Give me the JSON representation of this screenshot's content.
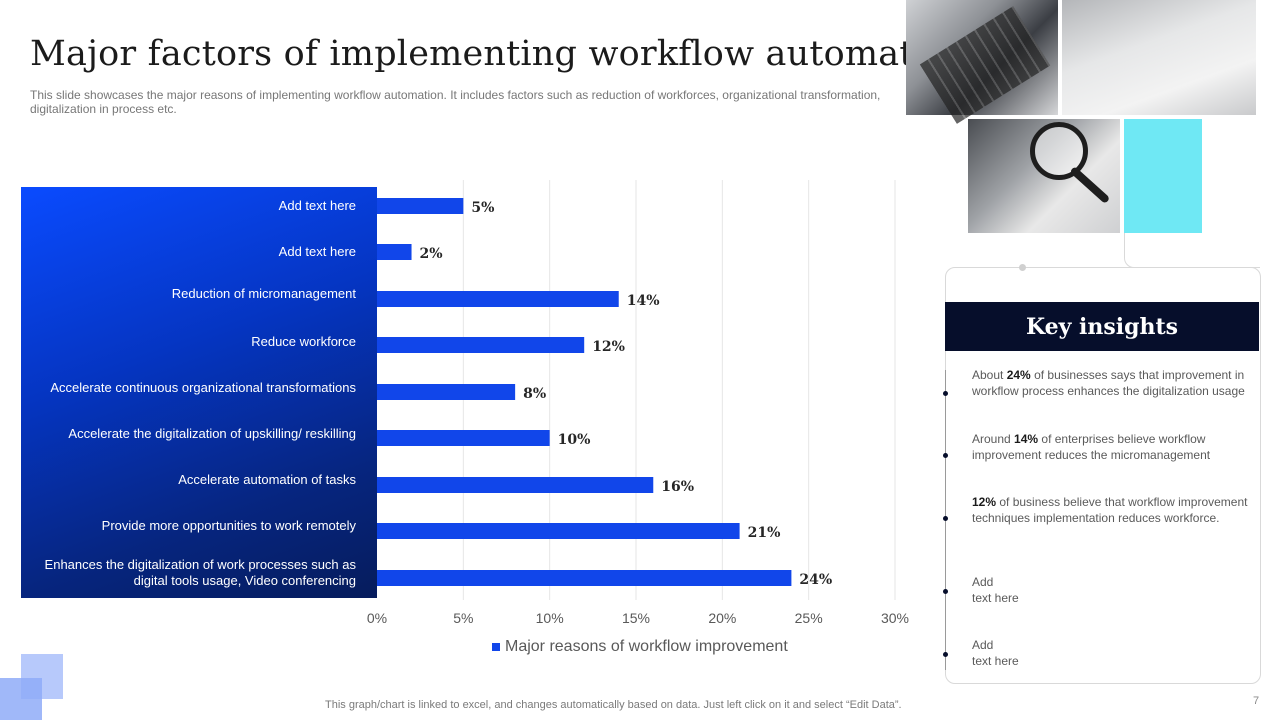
{
  "slide": {
    "title": "Major factors of implementing workflow automation",
    "subtitle": "This slide showcases the major reasons of implementing workflow automation. It includes factors such as reduction of workforces, organizational transformation, digitalization in process etc.",
    "footer_note": "This graph/chart is linked to excel, and changes automatically based on data. Just left click on it and select “Edit Data”.",
    "page_number": "7"
  },
  "colors": {
    "bar": "#1146ea",
    "panel_dark": "#061c5c",
    "panel_bright": "#0a4bff",
    "insight_header": "#060e2b",
    "accent_cyan": "#6fe8f4"
  },
  "chart_data": {
    "type": "bar",
    "orientation": "horizontal",
    "categories": [
      "Add text here",
      "Add text here",
      "Reduction of micromanagement",
      "Reduce workforce",
      "Accelerate continuous organizational transformations",
      "Accelerate the digitalization of upskilling/ reskilling",
      "Accelerate automation of tasks",
      "Provide  more opportunities to work remotely",
      "Enhances the digitalization of work processes such as digital tools usage, Video conferencing"
    ],
    "series": [
      {
        "name": "Major reasons of workflow improvement",
        "values": [
          5,
          2,
          14,
          12,
          8,
          10,
          16,
          21,
          24
        ],
        "data_labels": [
          "5%",
          "2%",
          "14%",
          "12%",
          "8%",
          "10%",
          "16%",
          "21%",
          "24%"
        ]
      }
    ],
    "xlim": [
      0,
      30
    ],
    "x_ticks": [
      "0%",
      "5%",
      "10%",
      "15%",
      "20%",
      "25%",
      "30%"
    ],
    "grid": true,
    "legend_position": "bottom"
  },
  "insights": {
    "header": "Key insights",
    "items": [
      {
        "lead": "About ",
        "bold": "24%",
        "rest": " of businesses says that improvement  in workflow  process enhances the digitalization usage"
      },
      {
        "lead": "Around ",
        "bold": "14%",
        "rest": " of enterprises believe  workflow improvement  reduces the micromanagement"
      },
      {
        "lead": "",
        "bold": "12%",
        "rest": " of business believe that workflow improvement  techniques implementation reduces workforce."
      },
      {
        "lead": "Add",
        "bold": "",
        "rest": "",
        "line2": "text here"
      },
      {
        "lead": "Add",
        "bold": "",
        "rest": "",
        "line2": "text here"
      }
    ]
  }
}
